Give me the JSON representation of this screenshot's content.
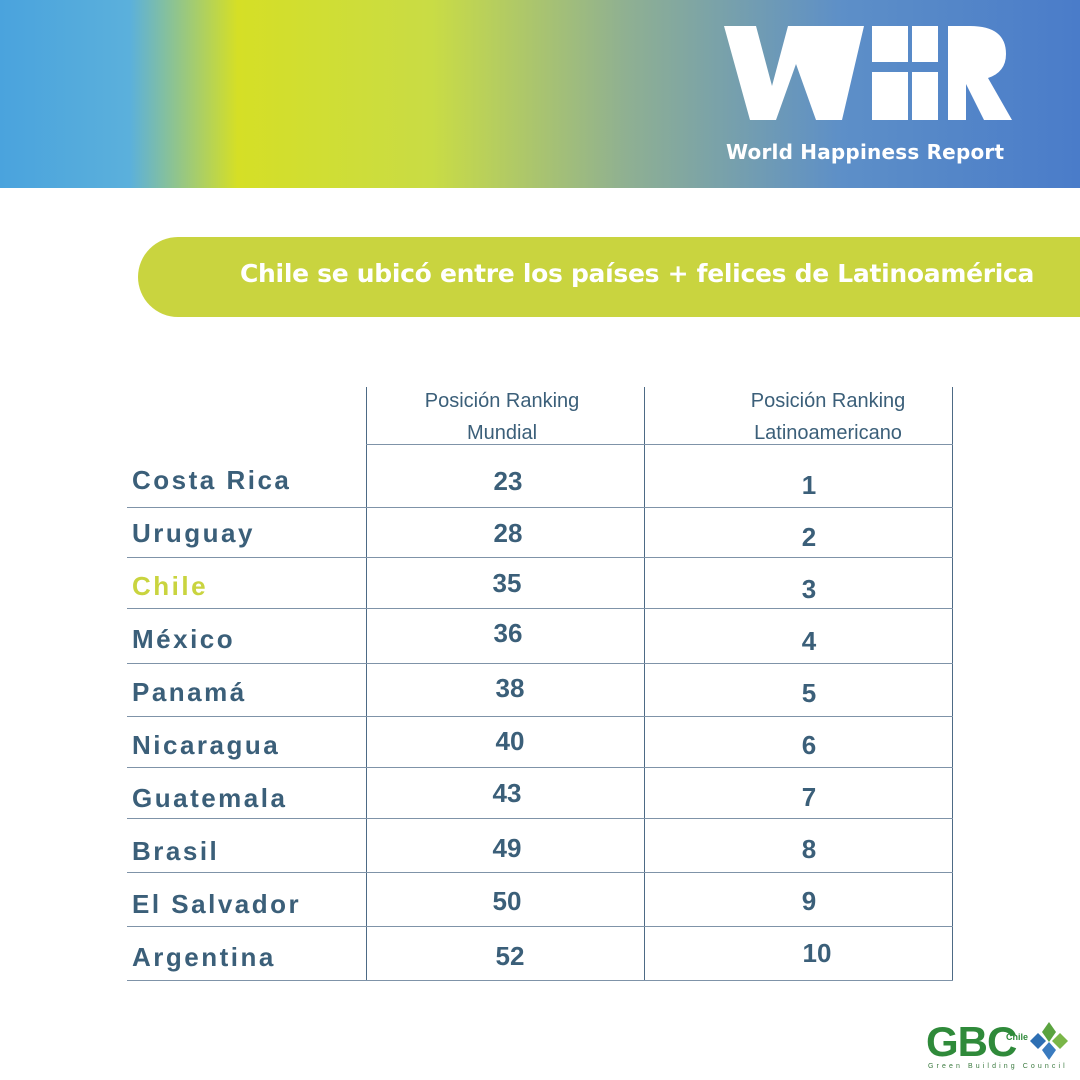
{
  "header": {
    "logo_icon": "whr-logo-icon",
    "logo_caption": "World Happiness Report"
  },
  "headline": "Chile se ubicó entre los países + felices de Latinoamérica",
  "table": {
    "columns": [
      "Posición Ranking Mundial",
      "Posición Ranking Latinoamericano"
    ],
    "column_lines": [
      [
        "Posición Ranking",
        "Mundial"
      ],
      [
        "Posición Ranking",
        "Latinoamericano"
      ]
    ],
    "rows": [
      {
        "country": "Costa Rica",
        "world": "23",
        "latam": "1"
      },
      {
        "country": "Uruguay",
        "world": "28",
        "latam": "2"
      },
      {
        "country": "Chile",
        "world": "35",
        "latam": "3"
      },
      {
        "country": "México",
        "world": "36",
        "latam": "4"
      },
      {
        "country": "Panamá",
        "world": "38",
        "latam": "5"
      },
      {
        "country": "Nicaragua",
        "world": "40",
        "latam": "6"
      },
      {
        "country": "Guatemala",
        "world": "43",
        "latam": "7"
      },
      {
        "country": "Brasil",
        "world": "49",
        "latam": "8"
      },
      {
        "country": "El Salvador",
        "world": "50",
        "latam": "9"
      },
      {
        "country": "Argentina",
        "world": "52",
        "latam": "10"
      }
    ],
    "highlight_country": "Chile"
  },
  "footer": {
    "logo_icon": "gbc-logo-icon",
    "logo_text": "GBC",
    "logo_country": "Chile",
    "logo_subtitle": "Green Building Council"
  },
  "colors": {
    "accent_green": "#c9d43f",
    "text_blue": "#3b5f79",
    "gbc_green": "#2f8a3a"
  }
}
